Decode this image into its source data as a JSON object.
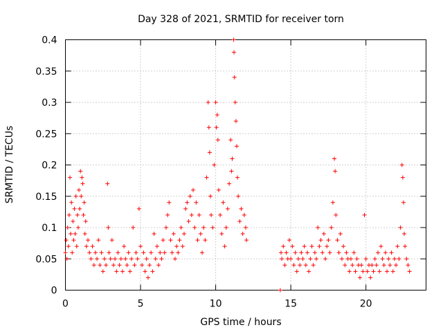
{
  "chart_data": {
    "type": "scatter",
    "title": "Day 328 of 2021, SRMTID for receiver torn",
    "xlabel": "GPS time / hours",
    "ylabel": "SRMTID / TECUs",
    "xlim": [
      0,
      24
    ],
    "ylim": [
      0,
      0.4
    ],
    "xticks": [
      0,
      5,
      10,
      15,
      20
    ],
    "xtick_labels": [
      "0",
      "5",
      "10",
      "15",
      "20"
    ],
    "yticks": [
      0,
      0.05,
      0.1,
      0.15,
      0.2,
      0.25,
      0.3,
      0.35,
      0.4
    ],
    "ytick_labels": [
      "0",
      "0.05",
      "0.1",
      "0.15",
      "0.2",
      "0.25",
      "0.3",
      "0.35",
      "0.4"
    ],
    "grid": true,
    "marker": "+",
    "color": "#ff0000",
    "series": [
      {
        "name": "SRMTID",
        "points": [
          [
            0.0,
            0.06
          ],
          [
            0.05,
            0.08
          ],
          [
            0.1,
            0.05
          ],
          [
            0.15,
            0.1
          ],
          [
            0.2,
            0.07
          ],
          [
            0.25,
            0.12
          ],
          [
            0.3,
            0.18
          ],
          [
            0.35,
            0.09
          ],
          [
            0.4,
            0.14
          ],
          [
            0.45,
            0.06
          ],
          [
            0.5,
            0.11
          ],
          [
            0.55,
            0.08
          ],
          [
            0.6,
            0.13
          ],
          [
            0.65,
            0.09
          ],
          [
            0.7,
            0.15
          ],
          [
            0.75,
            0.07
          ],
          [
            0.8,
            0.12
          ],
          [
            0.85,
            0.1
          ],
          [
            0.9,
            0.16
          ],
          [
            0.95,
            0.13
          ],
          [
            1.0,
            0.19
          ],
          [
            1.05,
            0.15
          ],
          [
            1.1,
            0.18
          ],
          [
            1.15,
            0.17
          ],
          [
            1.2,
            0.12
          ],
          [
            1.25,
            0.14
          ],
          [
            1.3,
            0.09
          ],
          [
            1.35,
            0.11
          ],
          [
            1.4,
            0.07
          ],
          [
            1.5,
            0.08
          ],
          [
            1.6,
            0.06
          ],
          [
            1.7,
            0.05
          ],
          [
            1.8,
            0.07
          ],
          [
            1.9,
            0.04
          ],
          [
            2.0,
            0.06
          ],
          [
            2.1,
            0.05
          ],
          [
            2.2,
            0.08
          ],
          [
            2.3,
            0.04
          ],
          [
            2.4,
            0.06
          ],
          [
            2.5,
            0.03
          ],
          [
            2.6,
            0.05
          ],
          [
            2.7,
            0.04
          ],
          [
            2.8,
            0.17
          ],
          [
            2.85,
            0.1
          ],
          [
            2.9,
            0.06
          ],
          [
            3.0,
            0.05
          ],
          [
            3.1,
            0.08
          ],
          [
            3.2,
            0.04
          ],
          [
            3.3,
            0.05
          ],
          [
            3.4,
            0.03
          ],
          [
            3.5,
            0.06
          ],
          [
            3.6,
            0.04
          ],
          [
            3.7,
            0.05
          ],
          [
            3.8,
            0.03
          ],
          [
            3.9,
            0.07
          ],
          [
            4.0,
            0.05
          ],
          [
            4.1,
            0.04
          ],
          [
            4.2,
            0.06
          ],
          [
            4.3,
            0.03
          ],
          [
            4.4,
            0.05
          ],
          [
            4.5,
            0.1
          ],
          [
            4.6,
            0.04
          ],
          [
            4.7,
            0.06
          ],
          [
            4.8,
            0.05
          ],
          [
            4.9,
            0.13
          ],
          [
            5.0,
            0.07
          ],
          [
            5.1,
            0.04
          ],
          [
            5.2,
            0.06
          ],
          [
            5.3,
            0.03
          ],
          [
            5.4,
            0.05
          ],
          [
            5.5,
            0.02
          ],
          [
            5.6,
            0.04
          ],
          [
            5.7,
            0.06
          ],
          [
            5.8,
            0.03
          ],
          [
            5.9,
            0.09
          ],
          [
            6.0,
            0.05
          ],
          [
            6.1,
            0.07
          ],
          [
            6.2,
            0.04
          ],
          [
            6.3,
            0.06
          ],
          [
            6.4,
            0.05
          ],
          [
            6.5,
            0.08
          ],
          [
            6.6,
            0.06
          ],
          [
            6.7,
            0.1
          ],
          [
            6.8,
            0.12
          ],
          [
            6.9,
            0.14
          ],
          [
            7.0,
            0.08
          ],
          [
            7.1,
            0.06
          ],
          [
            7.2,
            0.09
          ],
          [
            7.3,
            0.05
          ],
          [
            7.4,
            0.07
          ],
          [
            7.5,
            0.06
          ],
          [
            7.6,
            0.08
          ],
          [
            7.7,
            0.1
          ],
          [
            7.8,
            0.07
          ],
          [
            7.9,
            0.09
          ],
          [
            8.0,
            0.13
          ],
          [
            8.1,
            0.14
          ],
          [
            8.2,
            0.11
          ],
          [
            8.3,
            0.15
          ],
          [
            8.4,
            0.12
          ],
          [
            8.5,
            0.16
          ],
          [
            8.6,
            0.1
          ],
          [
            8.7,
            0.14
          ],
          [
            8.8,
            0.08
          ],
          [
            8.9,
            0.12
          ],
          [
            9.0,
            0.09
          ],
          [
            9.1,
            0.06
          ],
          [
            9.2,
            0.1
          ],
          [
            9.3,
            0.08
          ],
          [
            9.4,
            0.18
          ],
          [
            9.5,
            0.3
          ],
          [
            9.55,
            0.26
          ],
          [
            9.6,
            0.22
          ],
          [
            9.65,
            0.15
          ],
          [
            9.7,
            0.12
          ],
          [
            9.8,
            0.1
          ],
          [
            9.9,
            0.2
          ],
          [
            10.0,
            0.3
          ],
          [
            10.05,
            0.26
          ],
          [
            10.1,
            0.28
          ],
          [
            10.15,
            0.24
          ],
          [
            10.2,
            0.16
          ],
          [
            10.3,
            0.12
          ],
          [
            10.4,
            0.09
          ],
          [
            10.5,
            0.14
          ],
          [
            10.6,
            0.07
          ],
          [
            10.7,
            0.1
          ],
          [
            10.8,
            0.13
          ],
          [
            10.9,
            0.17
          ],
          [
            11.0,
            0.24
          ],
          [
            11.05,
            0.19
          ],
          [
            11.1,
            0.21
          ],
          [
            11.2,
            0.4
          ],
          [
            11.22,
            0.38
          ],
          [
            11.25,
            0.34
          ],
          [
            11.3,
            0.3
          ],
          [
            11.35,
            0.27
          ],
          [
            11.4,
            0.23
          ],
          [
            11.45,
            0.18
          ],
          [
            11.5,
            0.15
          ],
          [
            11.6,
            0.11
          ],
          [
            11.7,
            0.13
          ],
          [
            11.8,
            0.09
          ],
          [
            11.9,
            0.12
          ],
          [
            12.0,
            0.1
          ],
          [
            12.05,
            0.08
          ],
          [
            14.3,
            0.0
          ],
          [
            14.35,
            0.06
          ],
          [
            14.4,
            0.05
          ],
          [
            14.5,
            0.07
          ],
          [
            14.6,
            0.04
          ],
          [
            14.7,
            0.06
          ],
          [
            14.8,
            0.05
          ],
          [
            14.9,
            0.08
          ],
          [
            15.0,
            0.05
          ],
          [
            15.1,
            0.07
          ],
          [
            15.2,
            0.04
          ],
          [
            15.3,
            0.06
          ],
          [
            15.4,
            0.03
          ],
          [
            15.5,
            0.05
          ],
          [
            15.6,
            0.04
          ],
          [
            15.7,
            0.06
          ],
          [
            15.8,
            0.05
          ],
          [
            15.9,
            0.07
          ],
          [
            16.0,
            0.04
          ],
          [
            16.1,
            0.06
          ],
          [
            16.2,
            0.03
          ],
          [
            16.3,
            0.05
          ],
          [
            16.4,
            0.07
          ],
          [
            16.5,
            0.04
          ],
          [
            16.6,
            0.06
          ],
          [
            16.7,
            0.05
          ],
          [
            16.8,
            0.1
          ],
          [
            16.9,
            0.07
          ],
          [
            17.0,
            0.08
          ],
          [
            17.1,
            0.06
          ],
          [
            17.2,
            0.09
          ],
          [
            17.3,
            0.05
          ],
          [
            17.4,
            0.07
          ],
          [
            17.5,
            0.08
          ],
          [
            17.6,
            0.06
          ],
          [
            17.7,
            0.1
          ],
          [
            17.8,
            0.14
          ],
          [
            17.9,
            0.21
          ],
          [
            17.95,
            0.19
          ],
          [
            18.0,
            0.12
          ],
          [
            18.1,
            0.08
          ],
          [
            18.2,
            0.06
          ],
          [
            18.3,
            0.09
          ],
          [
            18.4,
            0.05
          ],
          [
            18.5,
            0.07
          ],
          [
            18.6,
            0.04
          ],
          [
            18.7,
            0.06
          ],
          [
            18.8,
            0.05
          ],
          [
            18.9,
            0.03
          ],
          [
            19.0,
            0.05
          ],
          [
            19.1,
            0.04
          ],
          [
            19.2,
            0.06
          ],
          [
            19.3,
            0.03
          ],
          [
            19.4,
            0.05
          ],
          [
            19.5,
            0.04
          ],
          [
            19.6,
            0.02
          ],
          [
            19.7,
            0.04
          ],
          [
            19.8,
            0.03
          ],
          [
            19.9,
            0.12
          ],
          [
            20.0,
            0.05
          ],
          [
            20.1,
            0.03
          ],
          [
            20.2,
            0.04
          ],
          [
            20.3,
            0.02
          ],
          [
            20.4,
            0.04
          ],
          [
            20.5,
            0.03
          ],
          [
            20.6,
            0.05
          ],
          [
            20.7,
            0.04
          ],
          [
            20.8,
            0.06
          ],
          [
            20.9,
            0.03
          ],
          [
            21.0,
            0.07
          ],
          [
            21.1,
            0.05
          ],
          [
            21.2,
            0.04
          ],
          [
            21.3,
            0.06
          ],
          [
            21.4,
            0.03
          ],
          [
            21.5,
            0.05
          ],
          [
            21.6,
            0.04
          ],
          [
            21.7,
            0.06
          ],
          [
            21.8,
            0.03
          ],
          [
            21.9,
            0.05
          ],
          [
            22.0,
            0.04
          ],
          [
            22.1,
            0.07
          ],
          [
            22.2,
            0.05
          ],
          [
            22.3,
            0.1
          ],
          [
            22.4,
            0.2
          ],
          [
            22.45,
            0.18
          ],
          [
            22.5,
            0.14
          ],
          [
            22.55,
            0.09
          ],
          [
            22.6,
            0.07
          ],
          [
            22.7,
            0.05
          ],
          [
            22.8,
            0.04
          ],
          [
            22.9,
            0.03
          ]
        ]
      }
    ]
  }
}
